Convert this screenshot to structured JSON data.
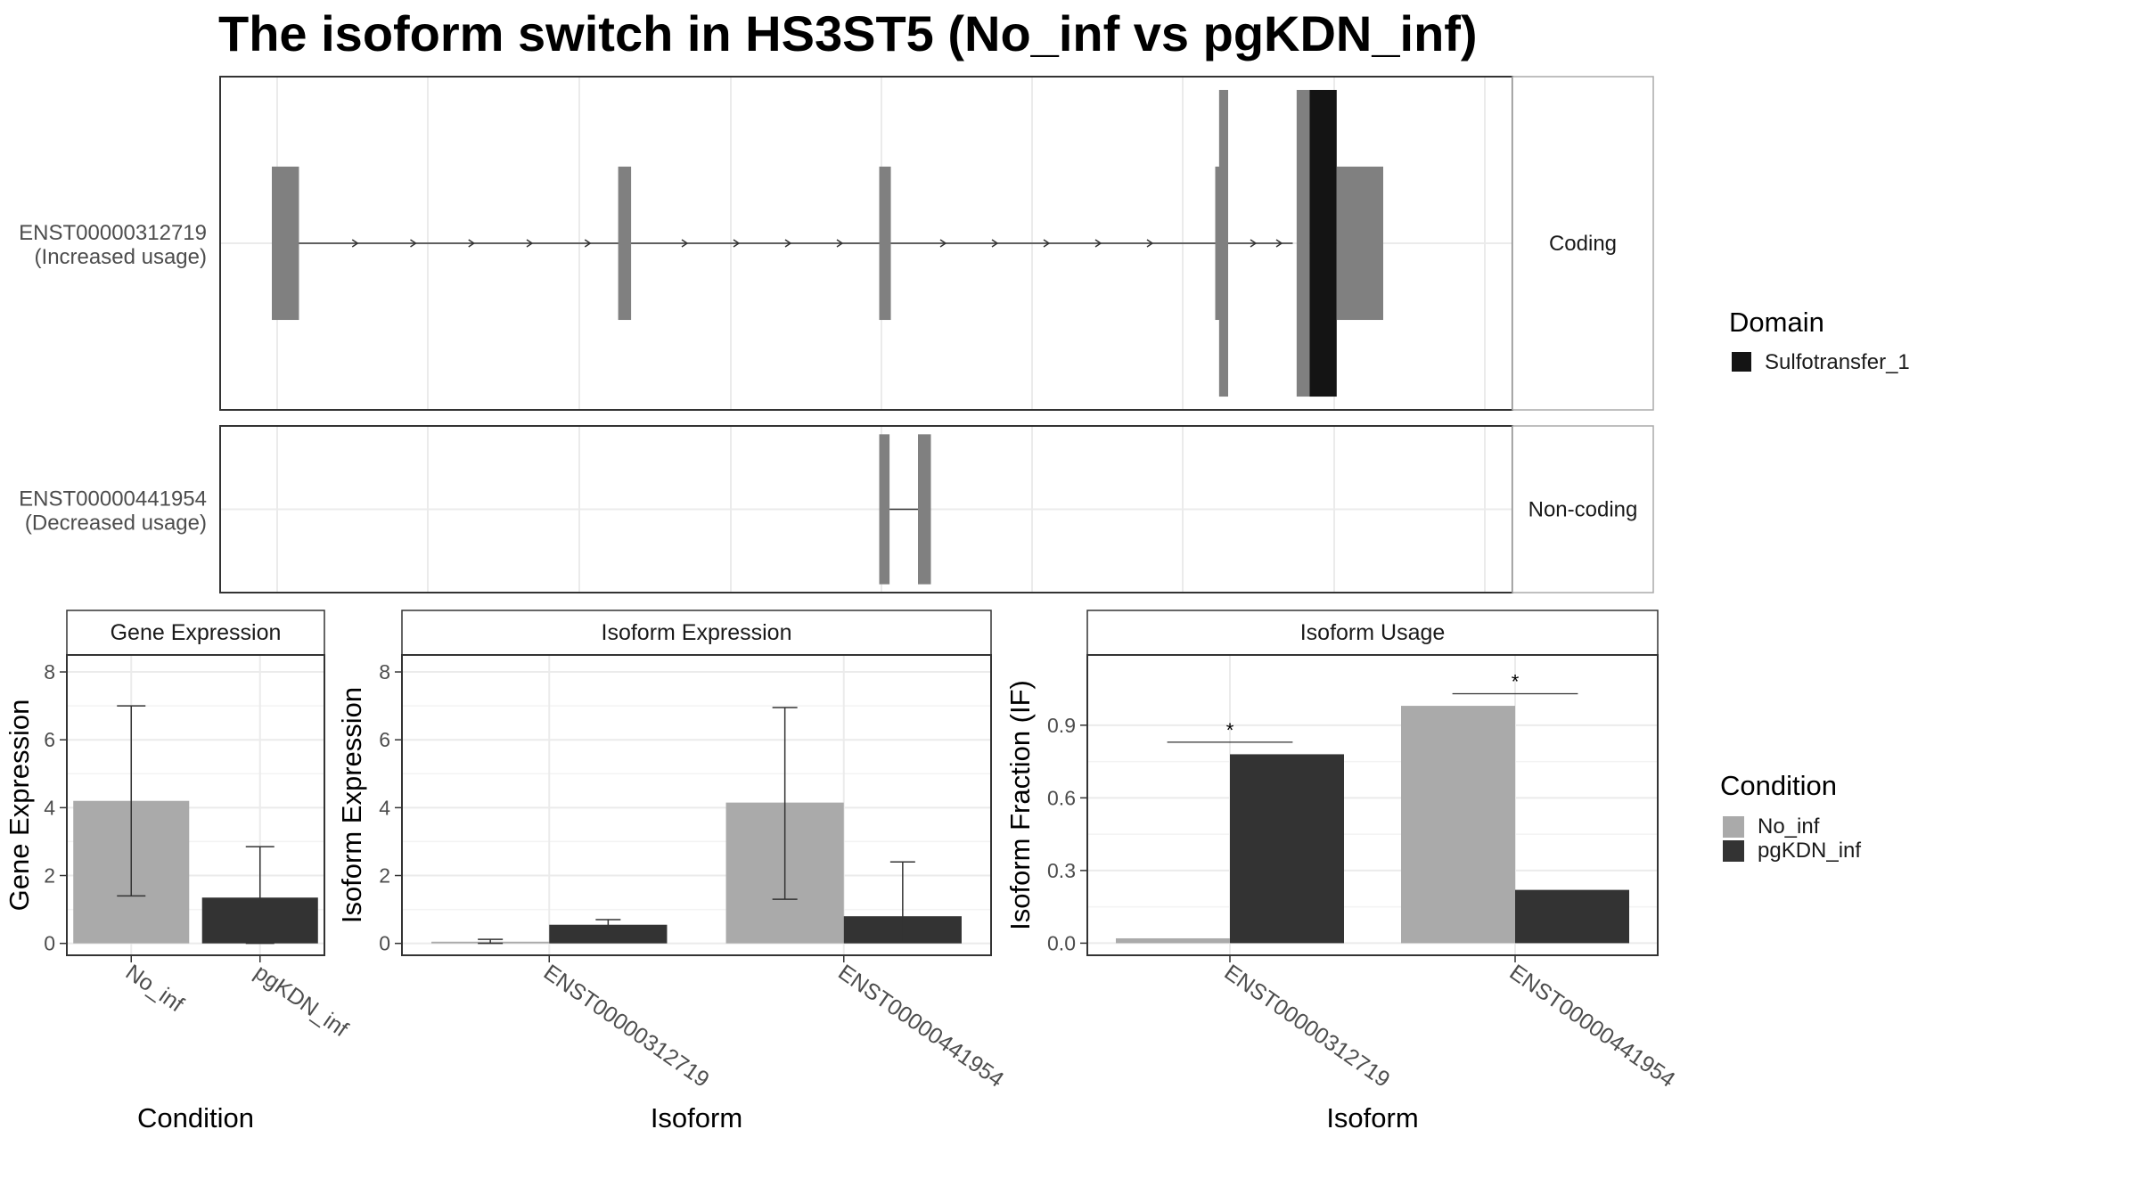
{
  "title": "The isoform switch in HS3ST5 (No_inf vs pgKDN_inf)",
  "colors": {
    "no_inf": "#aaaaaa",
    "pgkdn_inf": "#333333",
    "exon": "#808080",
    "domain": "#141414",
    "grid": "#ebebeb",
    "strip": "#ffffff",
    "panel_border": "#333333"
  },
  "structure": {
    "panels": [
      {
        "strip": "Coding",
        "id_label": "ENST00000312719",
        "usage_label": "(Increased usage)",
        "coding": true,
        "intron_range": [
          0.04,
          0.83
        ],
        "exons": [
          {
            "start": 0.04,
            "end": 0.061,
            "kind": "utr"
          },
          {
            "start": 0.308,
            "end": 0.318,
            "kind": "utr"
          },
          {
            "start": 0.51,
            "end": 0.519,
            "kind": "utr"
          },
          {
            "start": 0.77,
            "end": 0.778,
            "kind": "utr"
          },
          {
            "start": 0.773,
            "end": 0.78,
            "kind": "cds"
          },
          {
            "start": 0.833,
            "end": 0.843,
            "kind": "cds"
          },
          {
            "start": 0.843,
            "end": 0.864,
            "kind": "domain"
          },
          {
            "start": 0.864,
            "end": 0.9,
            "kind": "utr"
          }
        ],
        "arrows": [
          0.105,
          0.15,
          0.195,
          0.24,
          0.285,
          0.36,
          0.4,
          0.44,
          0.48,
          0.56,
          0.6,
          0.64,
          0.68,
          0.72,
          0.8,
          0.82
        ]
      },
      {
        "strip": "Non-coding",
        "id_label": "ENST00000441954",
        "usage_label": "(Decreased usage)",
        "coding": false,
        "intron_range": [
          0.518,
          0.54
        ],
        "exons": [
          {
            "start": 0.51,
            "end": 0.518,
            "kind": "noncoding"
          },
          {
            "start": 0.54,
            "end": 0.55,
            "kind": "noncoding"
          }
        ],
        "arrows": []
      }
    ],
    "legend": {
      "title": "Domain",
      "items": [
        "Sulfotransfer_1"
      ]
    }
  },
  "chart_data": [
    {
      "type": "bar",
      "strip": "Gene Expression",
      "xlabel": "Condition",
      "ylabel": "Gene Expression",
      "categories": [
        "No_inf",
        "pgKDN_inf"
      ],
      "values": [
        4.2,
        1.35
      ],
      "error_low": [
        1.4,
        0.0
      ],
      "error_high": [
        7.0,
        2.85
      ],
      "ylim": [
        -0.35,
        8.5
      ],
      "yticks": [
        0,
        2,
        4,
        6,
        8
      ],
      "ytick_labels": [
        "0",
        "2",
        "4",
        "6",
        "8"
      ],
      "grid": true
    },
    {
      "type": "bar",
      "strip": "Isoform Expression",
      "xlabel": "Isoform",
      "ylabel": "Isoform Expression",
      "categories": [
        "ENST00000312719",
        "ENST00000441954"
      ],
      "series": [
        {
          "name": "No_inf",
          "values": [
            0.05,
            4.15
          ],
          "error_low": [
            0.0,
            1.3
          ],
          "error_high": [
            0.12,
            6.95
          ]
        },
        {
          "name": "pgKDN_inf",
          "values": [
            0.55,
            0.8
          ],
          "error_low": [
            0.45,
            0.05
          ],
          "error_high": [
            0.7,
            2.4
          ]
        }
      ],
      "ylim": [
        -0.35,
        8.5
      ],
      "yticks": [
        0,
        2,
        4,
        6,
        8
      ],
      "ytick_labels": [
        "0",
        "2",
        "4",
        "6",
        "8"
      ],
      "grid": true
    },
    {
      "type": "bar",
      "strip": "Isoform Usage",
      "xlabel": "Isoform",
      "ylabel": "Isoform Fraction (IF)",
      "categories": [
        "ENST00000312719",
        "ENST00000441954"
      ],
      "series": [
        {
          "name": "No_inf",
          "values": [
            0.02,
            0.98
          ]
        },
        {
          "name": "pgKDN_inf",
          "values": [
            0.78,
            0.22
          ]
        }
      ],
      "significance": [
        {
          "label": "*",
          "y": 0.83
        },
        {
          "label": "*",
          "y": 1.03
        }
      ],
      "ylim": [
        -0.05,
        1.19
      ],
      "yticks": [
        0,
        0.3,
        0.6,
        0.9
      ],
      "ytick_labels": [
        "0.0",
        "0.3",
        "0.6",
        "0.9"
      ],
      "grid": true
    }
  ],
  "condition_legend": {
    "title": "Condition",
    "items": [
      "No_inf",
      "pgKDN_inf"
    ]
  }
}
